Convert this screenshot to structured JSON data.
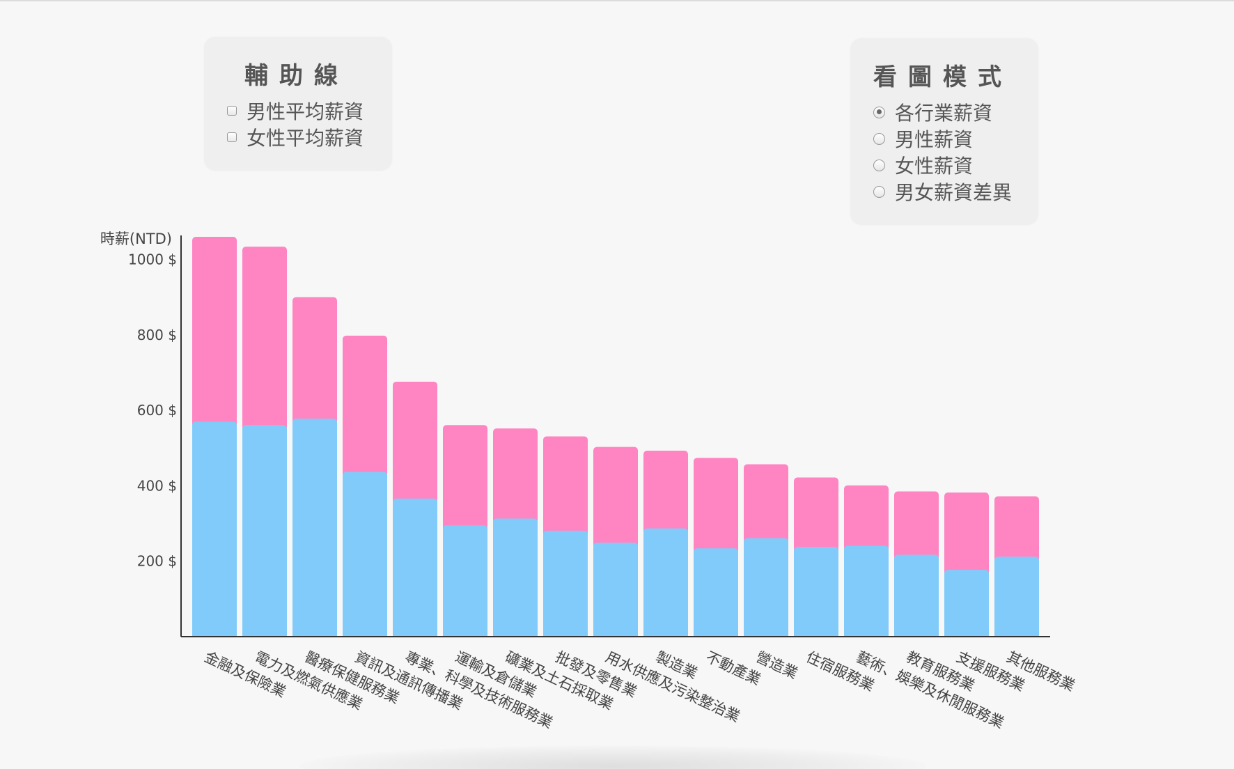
{
  "guides_panel": {
    "title": "輔助線",
    "options": [
      {
        "label": "男性平均薪資",
        "checked": false
      },
      {
        "label": "女性平均薪資",
        "checked": false
      }
    ]
  },
  "view_panel": {
    "title": "看圖模式",
    "options": [
      {
        "label": "各行業薪資",
        "selected": true
      },
      {
        "label": "男性薪資",
        "selected": false
      },
      {
        "label": "女性薪資",
        "selected": false
      },
      {
        "label": "男女薪資差異",
        "selected": false
      }
    ]
  },
  "colors": {
    "male": "#81cbfa",
    "female": "#fe85c2",
    "axis": "#333333"
  },
  "chart_data": {
    "type": "bar",
    "stacked": true,
    "ylabel": "時薪(NTD)",
    "yticks": [
      200,
      400,
      600,
      800,
      1000
    ],
    "ytick_suffix": " $",
    "ylim": [
      0,
      1060
    ],
    "categories": [
      "金融及保險業",
      "電力及燃氣供應業",
      "醫療保健服務業",
      "資訊及通訊傳播業",
      "專業、科學及技術服務業",
      "運輸及倉儲業",
      "礦業及土石採取業",
      "批發及零售業",
      "用水供應及污染整治業",
      "製造業",
      "不動產業",
      "營造業",
      "住宿服務業",
      "藝術、娛樂及休閒服務業",
      "教育服務業",
      "支援服務業",
      "其他服務業"
    ],
    "series": [
      {
        "key": "male",
        "values": [
          570,
          561,
          578,
          437,
          366,
          295,
          313,
          281,
          249,
          287,
          234,
          261,
          238,
          241,
          217,
          177,
          212
        ]
      },
      {
        "key": "female",
        "values": [
          490,
          473,
          322,
          361,
          310,
          266,
          239,
          250,
          254,
          206,
          240,
          196,
          184,
          160,
          168,
          205,
          160
        ]
      }
    ]
  }
}
